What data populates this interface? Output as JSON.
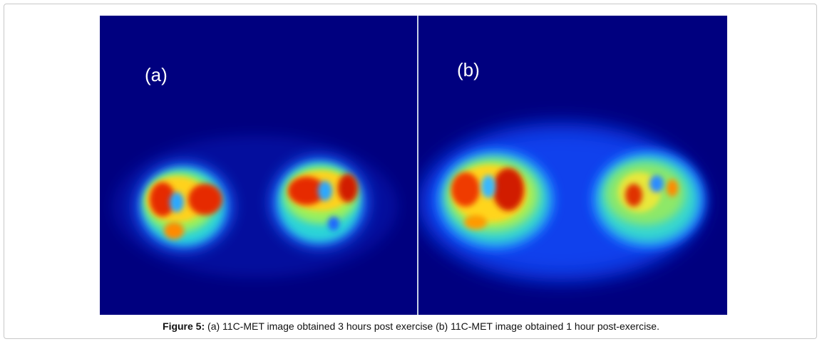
{
  "figure": {
    "panel_a_label": "(a)",
    "panel_b_label": "(b)",
    "caption_prefix": "Figure 5:",
    "caption_text": " (a) 11C-MET image obtained 3 hours post exercise (b) 11C-MET image obtained 1 hour post-exercise."
  }
}
